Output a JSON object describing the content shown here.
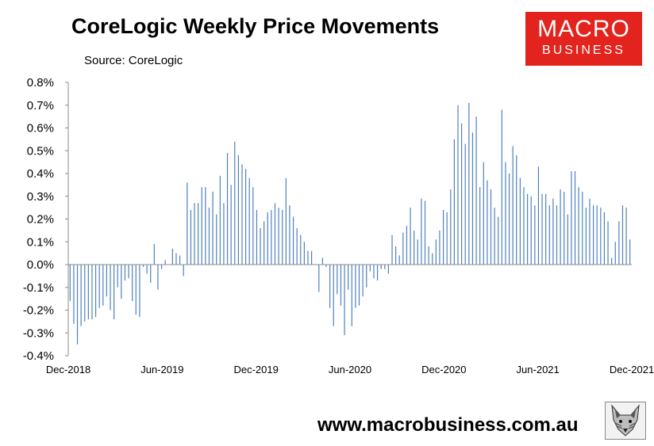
{
  "header": {
    "title": "CoreLogic Weekly Price Movements",
    "source": "Source: CoreLogic"
  },
  "logo": {
    "line1": "MACRO",
    "line2": "BUSINESS",
    "color": "#e3231d"
  },
  "footer": {
    "url": "www.macrobusiness.com.au"
  },
  "fox_icon": "fox-head-icon",
  "chart_data": {
    "type": "bar",
    "title": "CoreLogic Weekly Price Movements",
    "xlabel": "",
    "ylabel": "",
    "ylim": [
      -0.4,
      0.8
    ],
    "yticks": [
      0.8,
      0.7,
      0.6,
      0.5,
      0.4,
      0.3,
      0.2,
      0.1,
      0.0,
      -0.1,
      -0.2,
      -0.3,
      -0.4
    ],
    "ytick_labels": [
      "0.8%",
      "0.7%",
      "0.6%",
      "0.5%",
      "0.4%",
      "0.3%",
      "0.2%",
      "0.1%",
      "0.0%",
      "-0.1%",
      "-0.2%",
      "-0.3%",
      "-0.4%"
    ],
    "xtick_labels": [
      "Dec-2018",
      "Jun-2019",
      "Dec-2019",
      "Jun-2020",
      "Dec-2020",
      "Jun-2021",
      "Dec-2021"
    ],
    "grid": false,
    "bar_color": "#4f81bd",
    "values": [
      -0.16,
      -0.26,
      -0.35,
      -0.27,
      -0.25,
      -0.24,
      -0.24,
      -0.23,
      -0.19,
      -0.18,
      -0.14,
      -0.2,
      -0.24,
      -0.1,
      -0.15,
      -0.07,
      -0.06,
      -0.16,
      -0.22,
      -0.23,
      -0.01,
      -0.04,
      -0.08,
      0.09,
      -0.11,
      -0.02,
      0.02,
      0.0,
      0.07,
      0.05,
      0.04,
      -0.05,
      0.36,
      0.24,
      0.27,
      0.27,
      0.34,
      0.34,
      0.25,
      0.32,
      0.22,
      0.39,
      0.27,
      0.49,
      0.35,
      0.54,
      0.48,
      0.44,
      0.42,
      0.38,
      0.34,
      0.24,
      0.16,
      0.19,
      0.23,
      0.24,
      0.27,
      0.25,
      0.24,
      0.38,
      0.26,
      0.21,
      0.16,
      0.13,
      0.1,
      0.06,
      0.06,
      0.0,
      -0.12,
      0.03,
      -0.01,
      -0.19,
      -0.27,
      -0.13,
      -0.18,
      -0.31,
      -0.11,
      -0.27,
      -0.19,
      -0.18,
      -0.14,
      -0.1,
      -0.03,
      -0.06,
      -0.07,
      -0.02,
      -0.02,
      -0.04,
      0.13,
      0.08,
      0.04,
      0.14,
      0.17,
      0.25,
      0.15,
      0.11,
      0.29,
      0.28,
      0.08,
      0.05,
      0.11,
      0.15,
      0.24,
      0.23,
      0.33,
      0.55,
      0.7,
      0.62,
      0.53,
      0.71,
      0.58,
      0.65,
      0.34,
      0.45,
      0.37,
      0.33,
      0.25,
      0.21,
      0.68,
      0.45,
      0.4,
      0.52,
      0.48,
      0.38,
      0.34,
      0.31,
      0.3,
      0.26,
      0.43,
      0.31,
      0.31,
      0.26,
      0.29,
      0.26,
      0.33,
      0.32,
      0.22,
      0.41,
      0.41,
      0.34,
      0.32,
      0.25,
      0.29,
      0.26,
      0.26,
      0.25,
      0.23,
      0.19,
      0.03,
      0.1,
      0.19,
      0.26,
      0.25,
      0.11
    ]
  }
}
